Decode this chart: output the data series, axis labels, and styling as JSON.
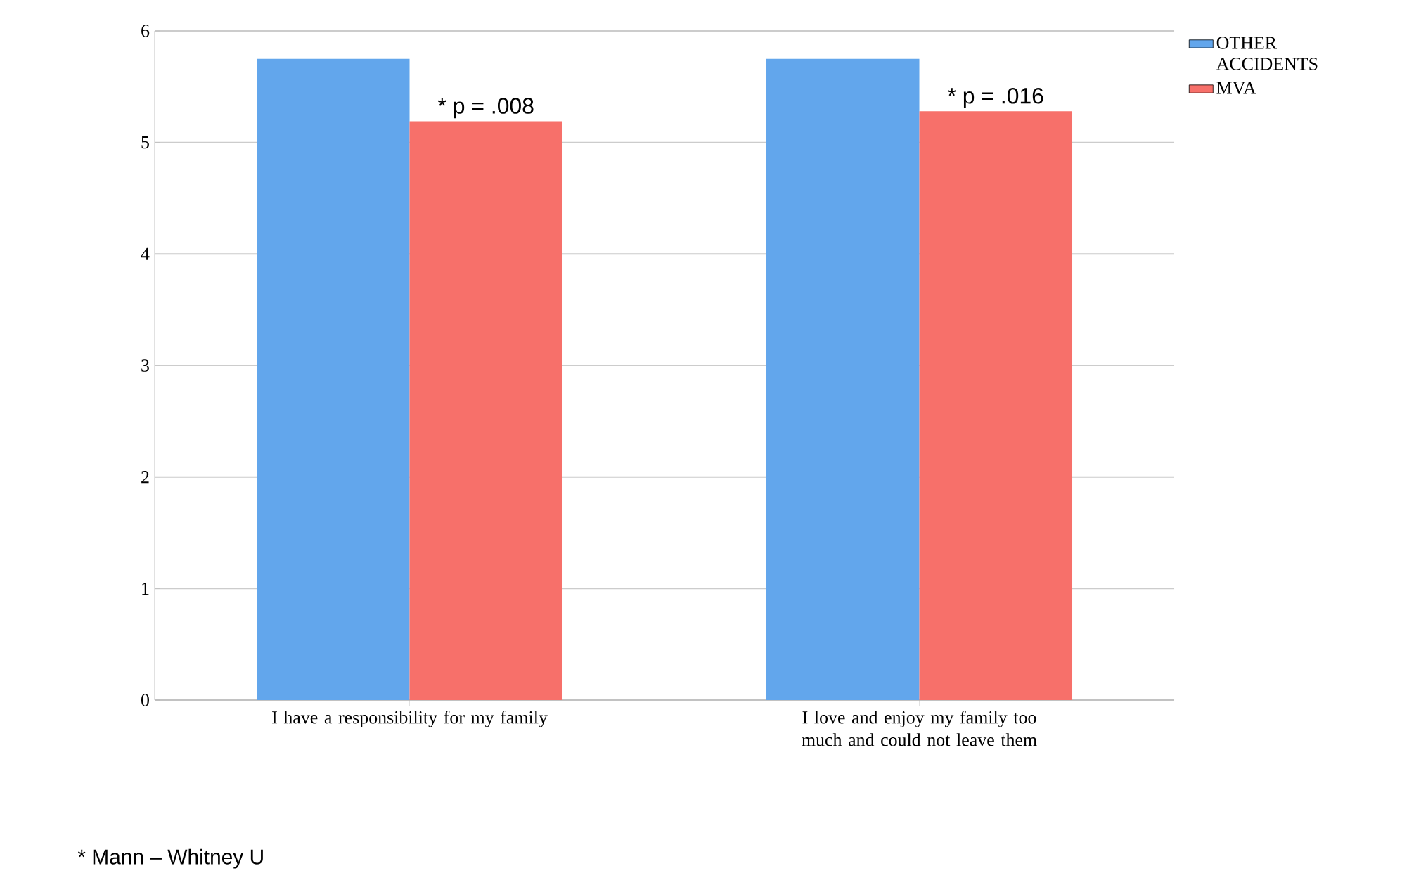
{
  "chart_data": {
    "type": "bar",
    "categories": [
      "I have a responsibility for my family",
      "I love and enjoy my family too much and could not leave them"
    ],
    "series": [
      {
        "name": "OTHER ACCIDENTS",
        "color": "#62a6ec",
        "values": [
          5.75,
          5.75
        ]
      },
      {
        "name": "MVA",
        "color": "#f7706a",
        "values": [
          5.19,
          5.28
        ]
      }
    ],
    "ylim": [
      0,
      6
    ],
    "yticks": [
      0,
      1,
      2,
      3,
      4,
      5,
      6
    ],
    "grid": "y",
    "legend": "right",
    "annotations": [
      {
        "text": "* p = .008",
        "x": "I have a responsibility for my family",
        "y": 5.19
      },
      {
        "text": "* p = .016",
        "x": "I love and enjoy my family too much and could not leave them",
        "y": 5.28
      },
      "* Mann – Whitney U"
    ]
  }
}
